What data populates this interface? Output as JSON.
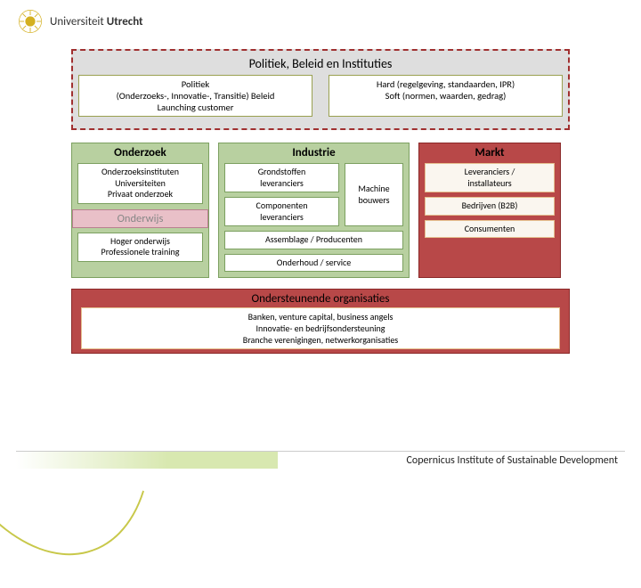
{
  "logo": {
    "university": "Universiteit",
    "city": "Utrecht"
  },
  "top": {
    "title": "Politiek, Beleid en Instituties",
    "left": "Politiek\n(Onderzoeks-, Innovatie-, Transitie) Beleid\nLaunching customer",
    "right": "Hard (regelgeving, standaarden, IPR)\nSoft (normen, waarden, gedrag)"
  },
  "onderzoek": {
    "header": "Onderzoek",
    "box1": "Onderzoeksinstituten\nUniversiteiten\nPrivaat onderzoek",
    "sub": "Onderwijs",
    "box2": "Hoger onderwijs\nProfessionele training"
  },
  "industrie": {
    "header": "Industrie",
    "grondstof": "Grondstoffen\nleveranciers",
    "component": "Componenten\nleveranciers",
    "machine": "Machine\nbouwers",
    "assemblage": "Assemblage / Producenten",
    "onderhoud": "Onderhoud / service"
  },
  "markt": {
    "header": "Markt",
    "lever": "Leveranciers /\ninstallateurs",
    "b2b": "Bedrijven (B2B)",
    "cons": "Consumenten"
  },
  "support": {
    "title": "Ondersteunende organisaties",
    "body": "Banken, venture capital, business angels\nInnovatie- en bedrijfsondersteuning\nBranche verenigingen, netwerkorganisaties"
  },
  "footer": "Copernicus Institute of Sustainable Development",
  "colors": {
    "green_fill": "#b8d0a0",
    "green_border": "#7ca060",
    "red_fill": "#b84848",
    "red_border": "#8a2828",
    "pink_fill": "#e9c0c8",
    "grey_fill": "#dedede",
    "accent_yellow": "#c8c84a"
  }
}
